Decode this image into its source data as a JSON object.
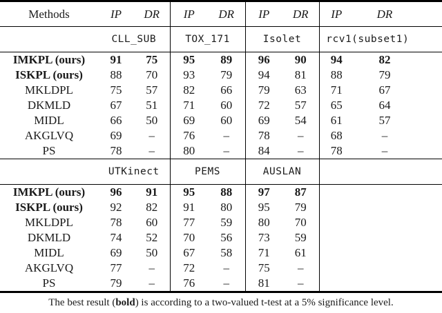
{
  "table": {
    "methods_header": "Methods",
    "metric_headers": {
      "ip": "IP",
      "dr": "DR"
    },
    "dash": "–",
    "sections": [
      {
        "datasets": [
          "CLL_SUB",
          "TOX_171",
          "Isolet",
          "rcv1(subset1)"
        ],
        "rows": [
          {
            "method": "IMKPL (ours)",
            "emphasis": "all",
            "values": [
              [
                "91",
                "75"
              ],
              [
                "95",
                "89"
              ],
              [
                "96",
                "90"
              ],
              [
                "94",
                "82"
              ]
            ]
          },
          {
            "method": "ISKPL (ours)",
            "emphasis": "label",
            "values": [
              [
                "88",
                "70"
              ],
              [
                "93",
                "79"
              ],
              [
                "94",
                "81"
              ],
              [
                "88",
                "79"
              ]
            ]
          },
          {
            "method": "MKLDPL",
            "emphasis": "none",
            "values": [
              [
                "75",
                "57"
              ],
              [
                "82",
                "66"
              ],
              [
                "79",
                "63"
              ],
              [
                "71",
                "67"
              ]
            ]
          },
          {
            "method": "DKMLD",
            "emphasis": "none",
            "values": [
              [
                "67",
                "51"
              ],
              [
                "71",
                "60"
              ],
              [
                "72",
                "57"
              ],
              [
                "65",
                "64"
              ]
            ]
          },
          {
            "method": "MIDL",
            "emphasis": "none",
            "values": [
              [
                "66",
                "50"
              ],
              [
                "69",
                "60"
              ],
              [
                "69",
                "54"
              ],
              [
                "61",
                "57"
              ]
            ]
          },
          {
            "method": "AKGLVQ",
            "emphasis": "none",
            "values": [
              [
                "69",
                "–"
              ],
              [
                "76",
                "–"
              ],
              [
                "78",
                "–"
              ],
              [
                "68",
                "–"
              ]
            ]
          },
          {
            "method": "PS",
            "emphasis": "none",
            "values": [
              [
                "78",
                "–"
              ],
              [
                "80",
                "–"
              ],
              [
                "84",
                "–"
              ],
              [
                "78",
                "–"
              ]
            ]
          }
        ]
      },
      {
        "datasets": [
          "UTKinect",
          "PEMS",
          "AUSLAN",
          ""
        ],
        "rows": [
          {
            "method": "IMKPL (ours)",
            "emphasis": "all",
            "values": [
              [
                "96",
                "91"
              ],
              [
                "95",
                "88"
              ],
              [
                "97",
                "87"
              ],
              [
                "",
                ""
              ]
            ]
          },
          {
            "method": "ISKPL (ours)",
            "emphasis": "label",
            "values": [
              [
                "92",
                "82"
              ],
              [
                "91",
                "80"
              ],
              [
                "95",
                "79"
              ],
              [
                "",
                ""
              ]
            ]
          },
          {
            "method": "MKLDPL",
            "emphasis": "none",
            "values": [
              [
                "78",
                "60"
              ],
              [
                "77",
                "59"
              ],
              [
                "80",
                "70"
              ],
              [
                "",
                ""
              ]
            ]
          },
          {
            "method": "DKMLD",
            "emphasis": "none",
            "values": [
              [
                "74",
                "52"
              ],
              [
                "70",
                "56"
              ],
              [
                "73",
                "59"
              ],
              [
                "",
                ""
              ]
            ]
          },
          {
            "method": "MIDL",
            "emphasis": "none",
            "values": [
              [
                "69",
                "50"
              ],
              [
                "67",
                "58"
              ],
              [
                "71",
                "61"
              ],
              [
                "",
                ""
              ]
            ]
          },
          {
            "method": "AKGLVQ",
            "emphasis": "none",
            "values": [
              [
                "77",
                "–"
              ],
              [
                "72",
                "–"
              ],
              [
                "75",
                "–"
              ],
              [
                "",
                ""
              ]
            ]
          },
          {
            "method": "PS",
            "emphasis": "none",
            "values": [
              [
                "79",
                "–"
              ],
              [
                "76",
                "–"
              ],
              [
                "81",
                "–"
              ],
              [
                "",
                ""
              ]
            ]
          }
        ]
      }
    ],
    "footnote": {
      "prefix": "The best result (",
      "bold_word": "bold",
      "suffix": ") is according to a two-valued t-test at a 5% significance level."
    }
  }
}
